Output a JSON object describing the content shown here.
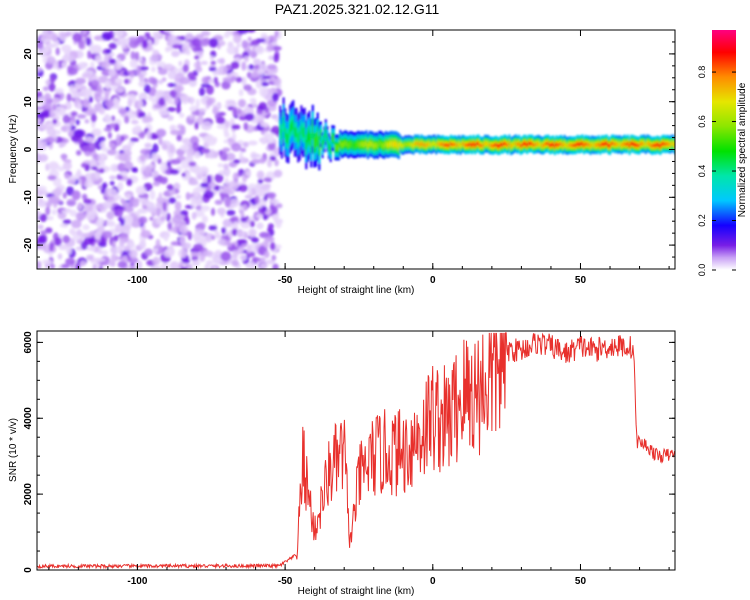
{
  "figure_title": "PAZ1.2025.321.02.12.G11",
  "chart_data": [
    {
      "type": "heatmap",
      "name": "spectrogram",
      "xlabel": "Height of straight line (km)",
      "ylabel": "Frequency (Hz)",
      "xlim": [
        -134,
        82
      ],
      "ylim": [
        -25,
        25
      ],
      "xticks": [
        -100,
        -50,
        0,
        50
      ],
      "yticks": [
        -20,
        -10,
        0,
        10,
        20
      ],
      "colorbar": {
        "label": "Normalized spectral amplitude",
        "ticks": [
          "0.0",
          "0.2",
          "0.4",
          "0.6",
          "0.8"
        ],
        "range": [
          0,
          0.97
        ],
        "colors": [
          "#ffffff",
          "#b37be8",
          "#6a00e6",
          "#0000ff",
          "#00c0ff",
          "#00e0a0",
          "#00e000",
          "#80e000",
          "#e0e000",
          "#ff9000",
          "#ff0000",
          "#ff0080"
        ]
      },
      "regions": [
        {
          "description": "noise",
          "x_range": [
            -134,
            -52
          ],
          "freq_range": [
            -25,
            25
          ],
          "amplitude_range": [
            0.02,
            0.12
          ]
        },
        {
          "description": "tracked signal",
          "x_range": [
            -52,
            82
          ],
          "freq_center_start": 4,
          "freq_center_end": 1,
          "amplitude_range": [
            0.2,
            0.85
          ]
        }
      ]
    },
    {
      "type": "line",
      "name": "snr",
      "xlabel": "Height of straight line (km)",
      "ylabel": "SNR (10 * v/v)",
      "xlim": [
        -134,
        82
      ],
      "ylim": [
        0,
        6300
      ],
      "xticks": [
        -100,
        -50,
        0,
        50
      ],
      "yticks": [
        0,
        2000,
        4000,
        6000
      ],
      "color": "#e8302c",
      "key_points": {
        "x": [
          -134,
          -52,
          -46,
          -44,
          -40,
          -35,
          -30,
          -28,
          -25,
          -20,
          -15,
          -10,
          -5,
          0,
          5,
          10,
          15,
          20,
          25,
          30,
          35,
          40,
          45,
          50,
          55,
          60,
          65,
          68,
          69,
          72,
          76,
          82
        ],
        "y": [
          100,
          110,
          400,
          2900,
          1000,
          2600,
          3100,
          700,
          2400,
          3000,
          3100,
          3100,
          3500,
          4100,
          3900,
          4600,
          4700,
          5100,
          5800,
          5800,
          6000,
          5900,
          5700,
          5900,
          5800,
          5900,
          5900,
          5850,
          3400,
          3300,
          3000,
          3050
        ]
      }
    }
  ]
}
